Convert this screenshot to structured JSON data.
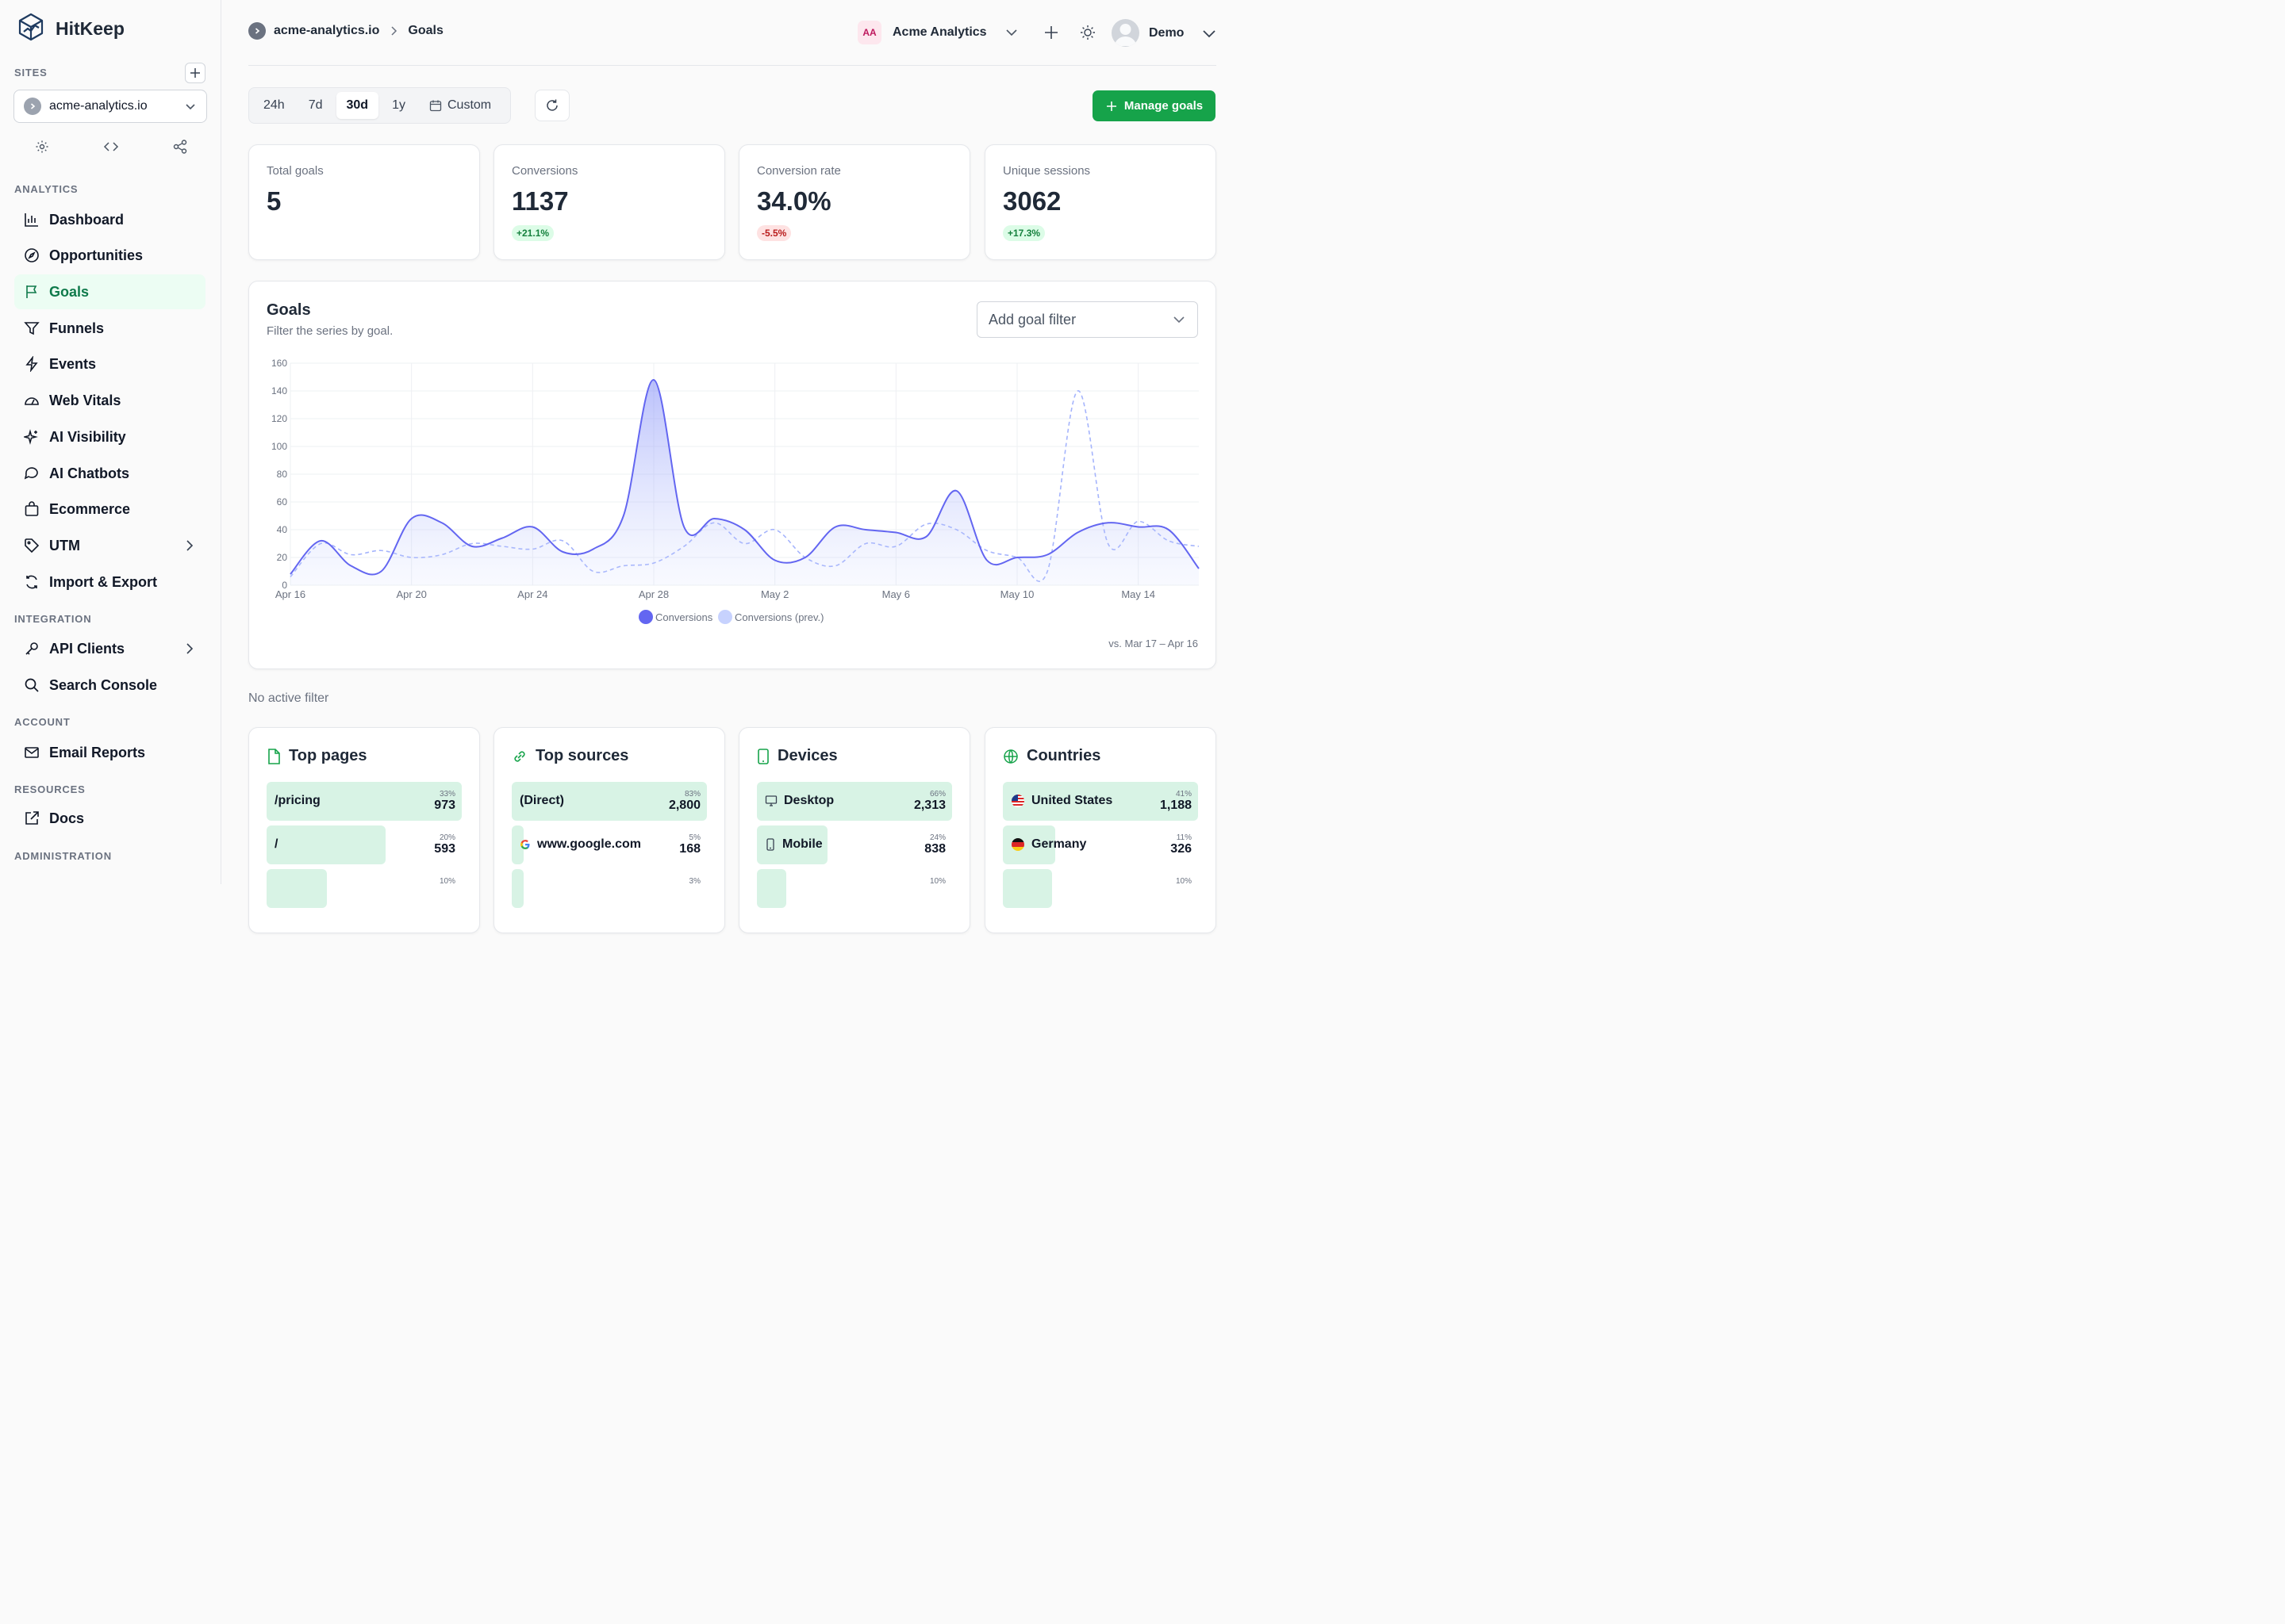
{
  "brand": "HitKeep",
  "sidebar": {
    "sites_label": "SITES",
    "site_selected": "acme-analytics.io",
    "sections": {
      "analytics": "ANALYTICS",
      "integration": "INTEGRATION",
      "account": "ACCOUNT",
      "resources": "RESOURCES",
      "administration": "ADMINISTRATION"
    },
    "items": [
      {
        "label": "Dashboard"
      },
      {
        "label": "Opportunities"
      },
      {
        "label": "Goals"
      },
      {
        "label": "Funnels"
      },
      {
        "label": "Events"
      },
      {
        "label": "Web Vitals"
      },
      {
        "label": "AI Visibility"
      },
      {
        "label": "AI Chatbots"
      },
      {
        "label": "Ecommerce"
      },
      {
        "label": "UTM"
      },
      {
        "label": "Import & Export"
      },
      {
        "label": "API Clients"
      },
      {
        "label": "Search Console"
      },
      {
        "label": "Email Reports"
      },
      {
        "label": "Docs"
      }
    ]
  },
  "header": {
    "breadcrumb": [
      "acme-analytics.io",
      "Goals"
    ],
    "org_initials": "AA",
    "org_name": "Acme Analytics",
    "user_name": "Demo"
  },
  "toolbar": {
    "ranges": [
      "24h",
      "7d",
      "30d",
      "1y",
      "Custom"
    ],
    "selected_range": "30d",
    "manage_label": "Manage goals"
  },
  "stats": [
    {
      "label": "Total goals",
      "value": "5",
      "delta": ""
    },
    {
      "label": "Conversions",
      "value": "1137",
      "delta": "+21.1%"
    },
    {
      "label": "Conversion rate",
      "value": "34.0%",
      "delta": "-5.5%"
    },
    {
      "label": "Unique sessions",
      "value": "3062",
      "delta": "+17.3%"
    }
  ],
  "goals_card": {
    "title": "Goals",
    "subtitle": "Filter the series by goal.",
    "filter_placeholder": "Add goal filter",
    "compare_label": "vs. Mar 17 – Apr 16"
  },
  "chart_data": {
    "type": "area",
    "x_tick_labels": [
      "Apr 16",
      "Apr 20",
      "Apr 24",
      "Apr 28",
      "May 2",
      "May 6",
      "May 10",
      "May 14"
    ],
    "ylim": [
      0,
      160
    ],
    "y_ticks": [
      0,
      20,
      40,
      60,
      80,
      100,
      120,
      140,
      160
    ],
    "grid": true,
    "legend_placement": "bottom",
    "series": [
      {
        "name": "Conversions",
        "color": "#6366f1",
        "values": [
          8,
          32,
          14,
          10,
          48,
          45,
          28,
          34,
          42,
          24,
          26,
          50,
          148,
          42,
          48,
          40,
          18,
          20,
          42,
          40,
          38,
          35,
          68,
          18,
          20,
          22,
          38,
          45,
          42,
          40,
          12
        ]
      },
      {
        "name": "Conversions (prev.)",
        "color": "#a5b4fc",
        "values": [
          6,
          30,
          22,
          25,
          20,
          22,
          30,
          28,
          26,
          32,
          10,
          14,
          16,
          28,
          45,
          30,
          40,
          20,
          14,
          30,
          28,
          44,
          40,
          25,
          20,
          10,
          140,
          30,
          46,
          32,
          28
        ]
      }
    ]
  },
  "no_filter_label": "No active filter",
  "panels": [
    {
      "title": "Top pages",
      "rows": [
        {
          "label": "/pricing",
          "pct": "33%",
          "value": "973",
          "share": 1.0
        },
        {
          "label": "/",
          "pct": "20%",
          "value": "593",
          "share": 0.61
        },
        {
          "label": "",
          "pct": "10%",
          "value": "",
          "share": 0.31
        }
      ]
    },
    {
      "title": "Top sources",
      "rows": [
        {
          "label": "(Direct)",
          "pct": "83%",
          "value": "2,800",
          "share": 1.0
        },
        {
          "label": "www.google.com",
          "pct": "5%",
          "value": "168",
          "share": 0.06
        },
        {
          "label": "",
          "pct": "3%",
          "value": "",
          "share": 0.04
        }
      ]
    },
    {
      "title": "Devices",
      "rows": [
        {
          "label": "Desktop",
          "pct": "66%",
          "value": "2,313",
          "share": 1.0
        },
        {
          "label": "Mobile",
          "pct": "24%",
          "value": "838",
          "share": 0.36
        },
        {
          "label": "",
          "pct": "10%",
          "value": "",
          "share": 0.15
        }
      ]
    },
    {
      "title": "Countries",
      "rows": [
        {
          "label": "United States",
          "pct": "41%",
          "value": "1,188",
          "share": 1.0
        },
        {
          "label": "Germany",
          "pct": "11%",
          "value": "326",
          "share": 0.27
        },
        {
          "label": "",
          "pct": "10%",
          "value": "",
          "share": 0.25
        }
      ]
    }
  ]
}
